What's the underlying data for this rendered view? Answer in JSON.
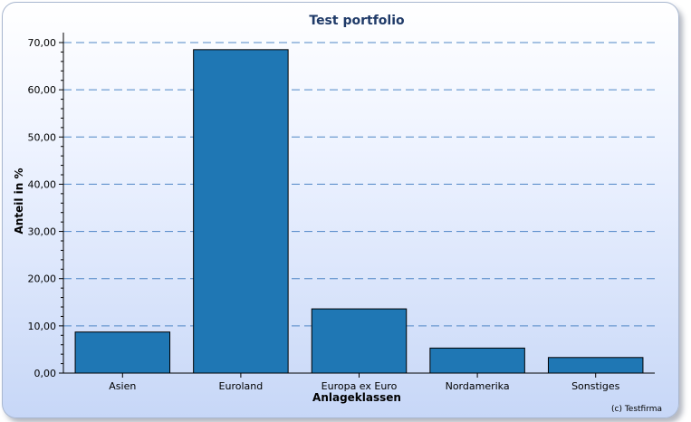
{
  "chart_data": {
    "type": "bar",
    "title": "Test portfolio",
    "xlabel": "Anlageklassen",
    "ylabel": "Anteil in %",
    "categories": [
      "Asien",
      "Euroland",
      "Europa ex Euro",
      "Nordamerika",
      "Sonstiges"
    ],
    "values": [
      8.7,
      68.5,
      13.6,
      5.3,
      3.3
    ],
    "ylim": [
      0,
      70
    ],
    "yticks": [
      "0,00",
      "10,00",
      "20,00",
      "30,00",
      "40,00",
      "50,00",
      "60,00",
      "70,00"
    ],
    "grid": true,
    "bar_color": "#1f77b4",
    "grid_color": "#4f86c6"
  },
  "footer": {
    "credit": "(c) Testfirma"
  }
}
